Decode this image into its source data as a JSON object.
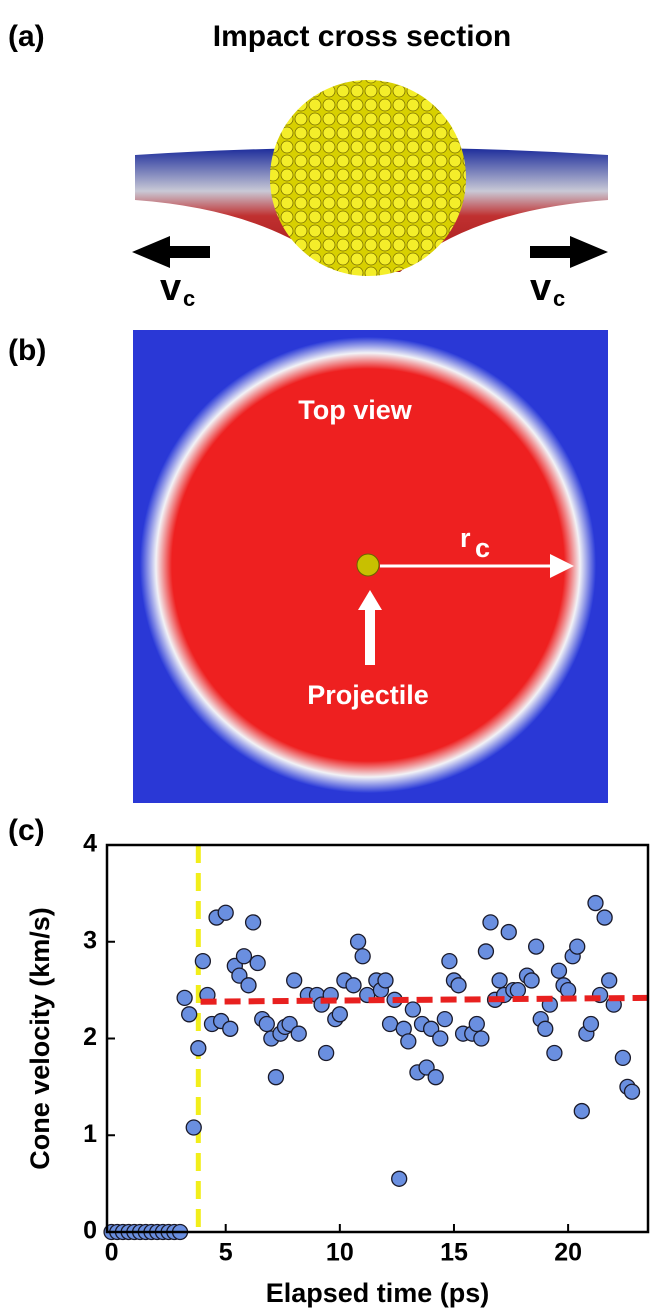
{
  "panel_a": {
    "label": "(a)",
    "title": "Impact cross section",
    "arrow_label": "v",
    "arrow_subscript": "c"
  },
  "panel_b": {
    "label": "(b)",
    "annotation": "Top view",
    "radius_label": "r",
    "radius_subscript": "c",
    "projectile_label": "Projectile"
  },
  "chart_data": {
    "type": "scatter",
    "panel_label": "(c)",
    "xlabel": "Elapsed time (ps)",
    "ylabel": "Cone velocity (km/s)",
    "xlim": [
      -0.2,
      23.5
    ],
    "ylim": [
      0,
      4
    ],
    "xticks": [
      0,
      5,
      10,
      15,
      20
    ],
    "yticks": [
      0,
      1,
      2,
      3,
      4
    ],
    "grid": false,
    "color": "#6a8fe0",
    "x": [
      0,
      0.25,
      0.5,
      0.75,
      1.0,
      1.25,
      1.5,
      1.75,
      2.0,
      2.25,
      2.5,
      2.75,
      3.0,
      3.2,
      3.4,
      3.6,
      3.8,
      4.0,
      4.2,
      4.4,
      4.6,
      4.8,
      5.0,
      5.2,
      5.4,
      5.6,
      5.8,
      6.0,
      6.2,
      6.4,
      6.6,
      6.8,
      7.0,
      7.2,
      7.4,
      7.6,
      7.8,
      8.0,
      8.2,
      8.6,
      9.0,
      9.2,
      9.4,
      9.6,
      9.8,
      10.0,
      10.2,
      10.6,
      10.8,
      11.0,
      11.2,
      11.6,
      11.8,
      12.0,
      12.2,
      12.4,
      12.6,
      12.8,
      13.0,
      13.2,
      13.4,
      13.6,
      13.8,
      14.0,
      14.2,
      14.4,
      14.6,
      14.8,
      15.0,
      15.2,
      15.4,
      15.8,
      16.0,
      16.2,
      16.4,
      16.6,
      16.8,
      17.0,
      17.2,
      17.4,
      17.6,
      17.8,
      18.2,
      18.4,
      18.6,
      18.8,
      19.0,
      19.2,
      19.4,
      19.6,
      19.8,
      20.0,
      20.2,
      20.4,
      20.6,
      20.8,
      21.0,
      21.2,
      21.4,
      21.6,
      21.8,
      22.0,
      22.4,
      22.6,
      22.8
    ],
    "values": [
      0,
      0,
      0,
      0,
      0,
      0,
      0,
      0,
      0,
      0,
      0,
      0,
      0,
      2.42,
      2.25,
      1.08,
      1.9,
      2.8,
      2.45,
      2.15,
      3.25,
      2.18,
      3.3,
      2.1,
      2.75,
      2.65,
      2.85,
      2.55,
      3.2,
      2.78,
      2.2,
      2.15,
      2.0,
      1.6,
      2.05,
      2.12,
      2.15,
      2.6,
      2.05,
      2.45,
      2.45,
      2.35,
      1.85,
      2.45,
      2.2,
      2.25,
      2.6,
      2.55,
      3.0,
      2.85,
      2.45,
      2.6,
      2.5,
      2.6,
      2.15,
      2.4,
      0.55,
      2.1,
      1.97,
      2.3,
      1.65,
      2.15,
      1.7,
      2.1,
      1.6,
      2.0,
      2.2,
      2.8,
      2.6,
      2.55,
      2.05,
      2.05,
      2.15,
      2.0,
      2.9,
      3.2,
      2.4,
      2.6,
      2.45,
      3.1,
      2.5,
      2.5,
      2.65,
      2.6,
      2.95,
      2.2,
      2.1,
      2.35,
      1.85,
      2.7,
      2.55,
      2.5,
      2.85,
      2.95,
      1.25,
      2.05,
      2.15,
      3.4,
      2.45,
      3.25,
      2.6,
      2.35,
      1.8,
      1.5,
      1.45
    ],
    "threshold": {
      "x": 3.8,
      "color": "#f2ee1a"
    },
    "fit": {
      "x": [
        3.9,
        23.5
      ],
      "y": [
        2.38,
        2.42
      ],
      "color": "#e8201f"
    }
  }
}
